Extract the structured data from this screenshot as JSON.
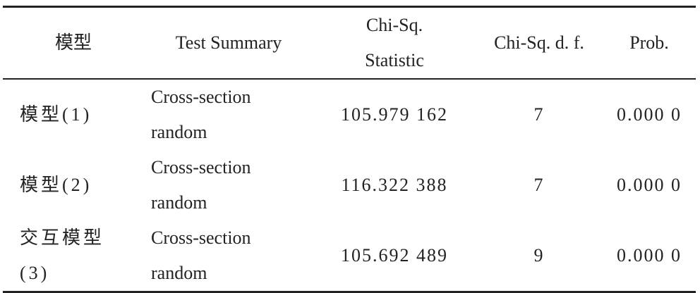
{
  "table": {
    "header": [
      "模型",
      "Test Summary",
      "Chi-Sq. Statistic",
      "Chi-Sq. d. f.",
      "Prob."
    ],
    "rows": [
      [
        "模型(1)",
        "Cross-section random",
        "105.979 162",
        "7",
        "0.000 0"
      ],
      [
        "模型(2)",
        "Cross-section random",
        "116.322 388",
        "7",
        "0.000 0"
      ],
      [
        "交互模型(3)",
        "Cross-section random",
        "105.692 489",
        "9",
        "0.000 0"
      ]
    ]
  }
}
